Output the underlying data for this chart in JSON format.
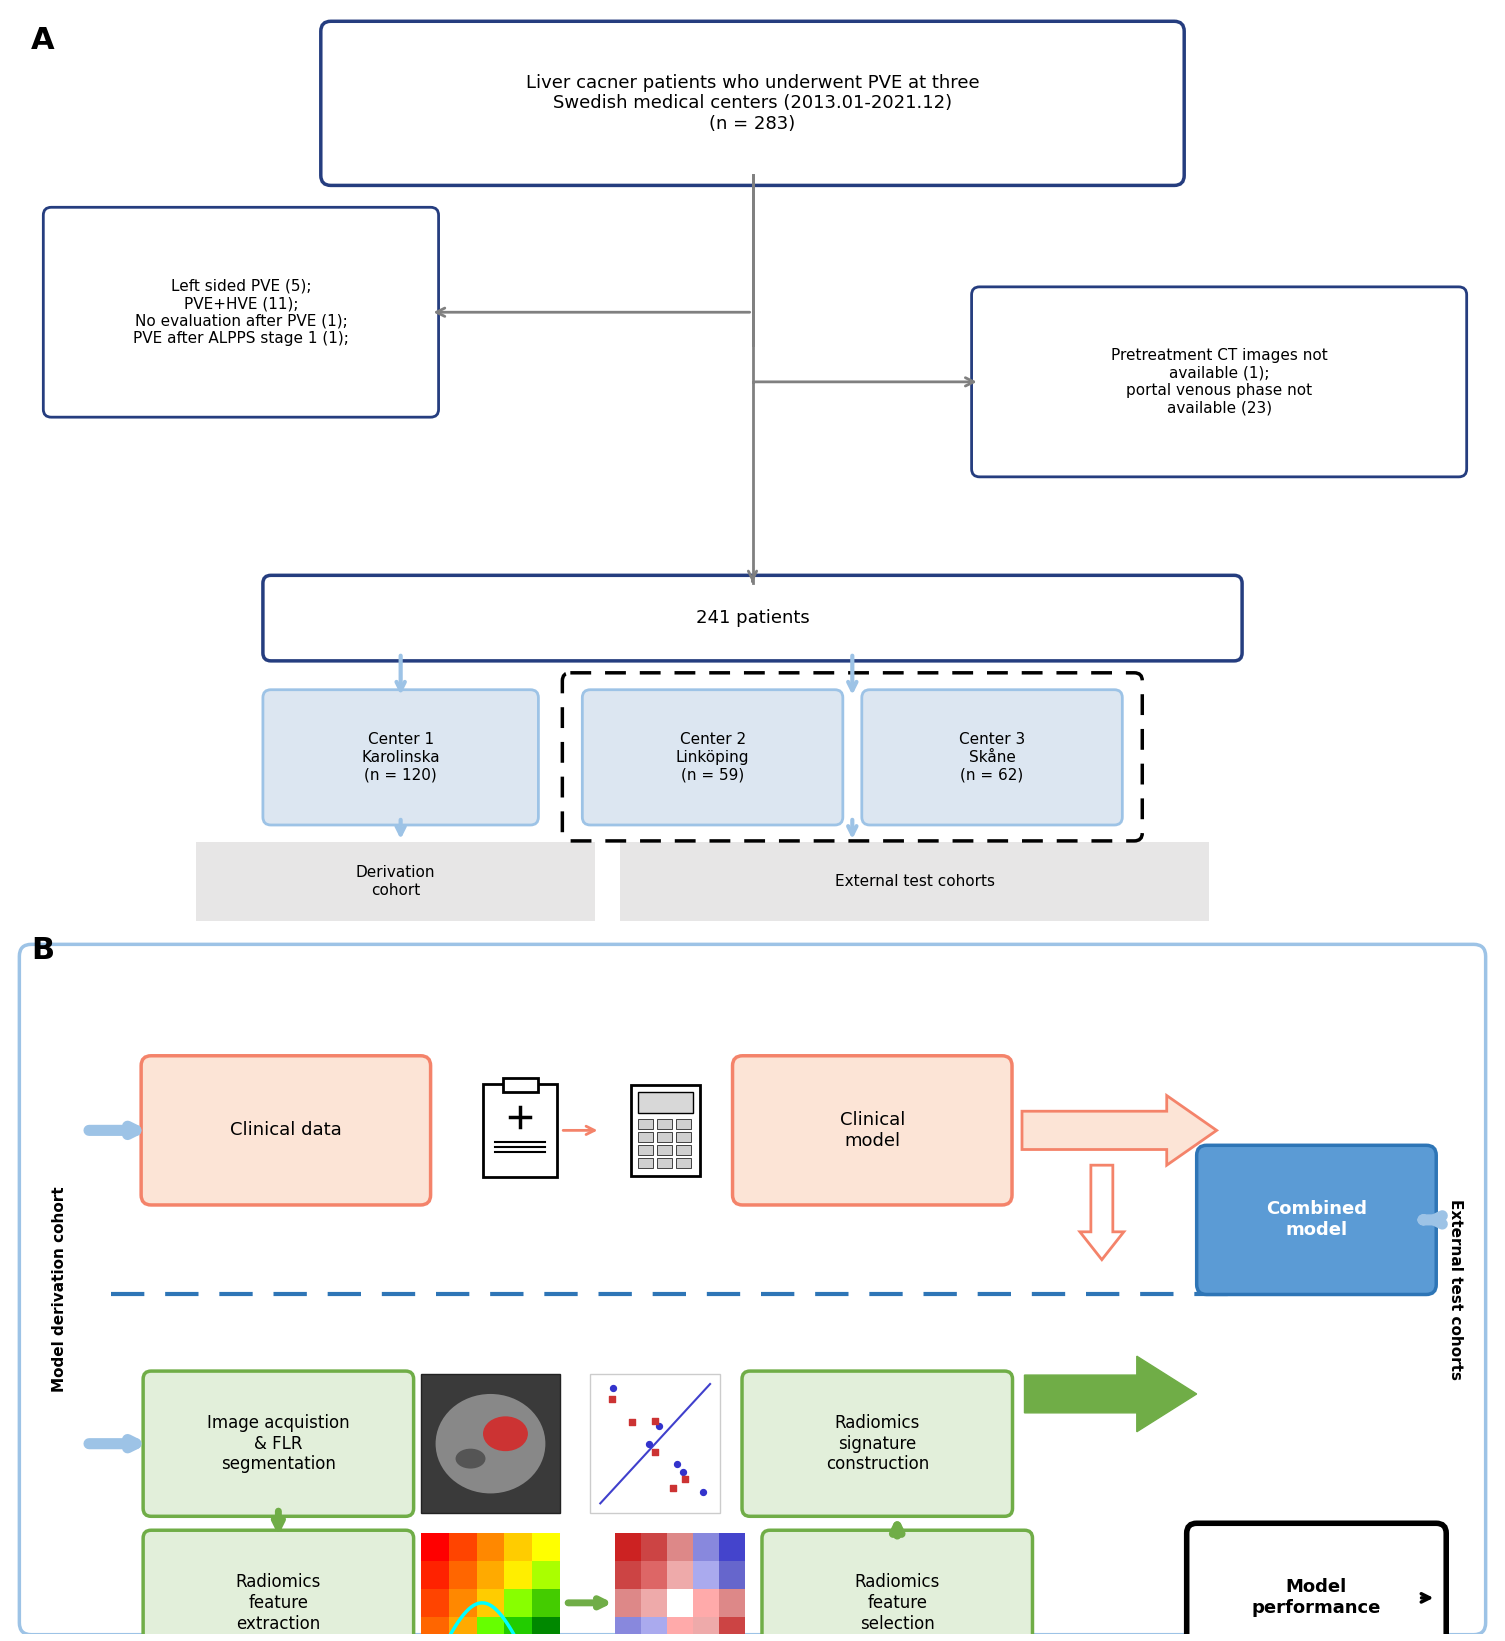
{
  "fig_width": 15.05,
  "fig_height": 16.41,
  "bg_color": "#ffffff",
  "panel_A_label": "A",
  "panel_B_label": "B",
  "box_top_text": "Liver cacner patients who underwent PVE at three\nSwedish medical centers (2013.01-2021.12)\n(n = 283)",
  "box_left_text": "Left sided PVE (5);\nPVE+HVE (11);\nNo evaluation after PVE (1);\nPVE after ALPPS stage 1 (1);",
  "box_right_text": "Pretreatment CT images not\navailable (1);\nportal venous phase not\navailable (23)",
  "box_241_text": "241 patients",
  "center1_text": "Center 1\nKarolinska\n(n = 120)",
  "center2_text": "Center 2\nLinköping\n(n = 59)",
  "center3_text": "Center 3\nSkåne\n(n = 62)",
  "derivation_text": "Derivation\ncohort",
  "external_test_text": "External test cohorts",
  "clinical_data_text": "Clinical data",
  "clinical_model_text": "Clinical\nmodel",
  "combined_model_text": "Combined\nmodel",
  "model_perf_text": "Model\nperformance",
  "image_acq_text": "Image acquistion\n& FLR\nsegmentation",
  "radiomics_sig_text": "Radiomics\nsignature\nconstruction",
  "radiomics_feat_ext_text": "Radiomics\nfeature\nextraction",
  "radiomics_feat_sel_text": "Radiomics\nfeature\nselection",
  "model_deriv_cohort_text": "Model derivation cohort",
  "external_test_cohorts_text": "External test cohorts",
  "blue_dark": "#253d7f",
  "blue_medium": "#2e75b6",
  "blue_light": "#9dc3e6",
  "blue_fill": "#dce6f1",
  "salmon": "#f4836a",
  "salmon_light": "#fce4d6",
  "green_border": "#70ad47",
  "green_light": "#e2efda",
  "green_solid": "#70ad47",
  "gray_fill": "#e7e6e6",
  "gray_arrow": "#808080",
  "blue_arrow": "#9dc3e6",
  "combined_blue_fill": "#5b9bd5",
  "combined_blue_edge": "#2e75b6"
}
